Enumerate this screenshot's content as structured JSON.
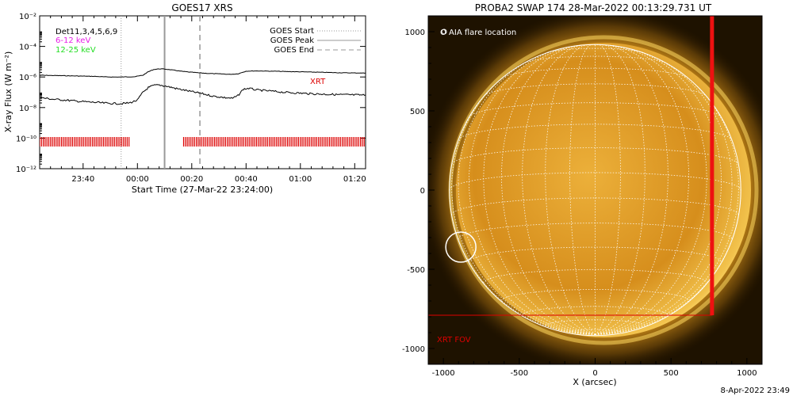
{
  "left_panel": {
    "title": "GOES17 XRS",
    "ylabel": "X-ray Flux (W m⁻²)",
    "xlabel": "Start Time (27-Mar-22 23:24:00)",
    "detector_label": "Det11,3,4,5,6,9",
    "energy_label_1": "6-12 keV",
    "energy_label_2": "12-25 keV",
    "xrt_label": "XRT",
    "legend": {
      "start": "GOES Start",
      "peak": "GOES Peak",
      "end": "GOES End",
      "placement": "top-right"
    },
    "colors": {
      "energy_1": "#e81ee8",
      "energy_2": "#22dd22",
      "xrt": "#dd0000",
      "markers": "#999999"
    }
  },
  "right_panel": {
    "title": "PROBA2 SWAP 174 28-Mar-2022 00:13:29.731 UT",
    "legend_text": "O AIA flare location",
    "xrt_fov_label": "XRT FOV",
    "xlabel": "X (arcsec)",
    "footer_timestamp": "8-Apr-2022 23:49",
    "colors": {
      "fov": "#dd0000",
      "disk": "#e8a830",
      "grid": "#ffffff"
    }
  },
  "chart_data": [
    {
      "type": "line",
      "title": "GOES17 XRS",
      "xlabel": "Start Time (27-Mar-22 23:24:00)",
      "ylabel": "X-ray Flux (W m⁻²)",
      "x_unit": "minutes since 27-Mar-22 23:24:00",
      "xlim": [
        0,
        120
      ],
      "ylim": [
        1e-12,
        0.01
      ],
      "yscale": "log",
      "yticks": [
        1e-12,
        1e-10,
        1e-08,
        1e-06,
        0.0001,
        0.01
      ],
      "ytick_labels": [
        "10⁻¹²",
        "10⁻¹⁰",
        "10⁻⁸",
        "10⁻⁶",
        "10⁻⁴",
        "10⁻²"
      ],
      "xticks": [
        16,
        36,
        56,
        76,
        96,
        116
      ],
      "xtick_labels": [
        "23:40",
        "00:00",
        "00:20",
        "00:40",
        "01:00",
        "01:20"
      ],
      "series": [
        {
          "x": [
            0,
            10,
            20,
            25,
            30,
            35,
            38,
            40,
            42,
            44,
            46,
            48,
            50,
            52,
            55,
            58,
            62,
            66,
            70,
            73,
            76,
            80,
            85,
            90,
            100,
            110,
            120
          ],
          "y": [
            1.3e-06,
            1.2e-06,
            1.1e-06,
            1e-06,
            1e-06,
            1.05e-06,
            1.3e-06,
            2.2e-06,
            3.1e-06,
            3.4e-06,
            3.3e-06,
            3e-06,
            2.7e-06,
            2.4e-06,
            2.1e-06,
            1.9e-06,
            1.7e-06,
            1.6e-06,
            1.5e-06,
            1.6e-06,
            2.4e-06,
            2.5e-06,
            2.4e-06,
            2.3e-06,
            2.1e-06,
            1.9e-06,
            1.8e-06
          ]
        },
        {
          "x": [
            0,
            5,
            10,
            15,
            20,
            25,
            30,
            33,
            36,
            38,
            40,
            42,
            44,
            46,
            48,
            50,
            53,
            56,
            60,
            64,
            68,
            71,
            73,
            75,
            77,
            80,
            85,
            90,
            100,
            110,
            120
          ],
          "y": [
            4.5e-08,
            3.5e-08,
            3e-08,
            2.5e-08,
            2.2e-08,
            1.9e-08,
            1.8e-08,
            2e-08,
            3e-08,
            1e-07,
            2e-07,
            2.8e-07,
            3e-07,
            2.6e-07,
            2.2e-07,
            1.8e-07,
            1.4e-07,
            1.1e-07,
            8e-08,
            5.5e-08,
            4.5e-08,
            4e-08,
            6e-08,
            1.6e-07,
            1.8e-07,
            1.4e-07,
            1.2e-07,
            1e-07,
            8e-08,
            7e-08,
            6.5e-08
          ]
        }
      ],
      "markers": {
        "goes_start": 30,
        "goes_peak": 46,
        "goes_end": 59
      },
      "xrt_coverage": [
        [
          0,
          33
        ],
        [
          53,
          120
        ]
      ]
    },
    {
      "type": "scatter",
      "title": "PROBA2 SWAP 174 28-Mar-2022 00:13:29.731 UT",
      "xlabel": "X (arcsec)",
      "xlim": [
        -1100,
        1100
      ],
      "ylim": [
        -1100,
        1100
      ],
      "xticks": [
        -1000,
        -500,
        0,
        500,
        1000
      ],
      "yticks": [
        -1000,
        -500,
        0,
        500,
        1000
      ],
      "solar_radius_arcsec": 960,
      "aia_flare_location": [
        -885,
        -360
      ],
      "xrt_fov": {
        "x": [
          -1100,
          770
        ],
        "y": [
          -790,
          1100
        ]
      }
    }
  ]
}
